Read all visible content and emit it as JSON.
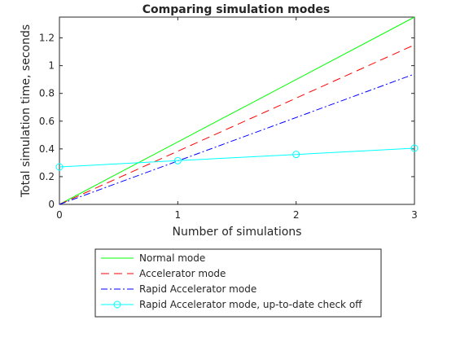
{
  "chart_data": {
    "type": "line",
    "title": "Comparing simulation modes",
    "xlabel": "Number of simulations",
    "ylabel": "Total simulation time, seconds",
    "xlim": [
      0,
      3
    ],
    "ylim": [
      0,
      1.35
    ],
    "xticks": [
      0,
      1,
      2,
      3
    ],
    "xtick_labels": [
      "0",
      "1",
      "2",
      "3"
    ],
    "yticks": [
      0,
      0.2,
      0.4,
      0.6,
      0.8,
      1,
      1.2
    ],
    "ytick_labels": [
      "0",
      "0.2",
      "0.4",
      "0.6",
      "0.8",
      "1",
      "1.2"
    ],
    "grid": false,
    "legend_position": "bottom-center, outside plot",
    "series": [
      {
        "name": "Normal mode",
        "x": [
          0,
          1,
          2,
          3
        ],
        "y": [
          0,
          0.45,
          0.9,
          1.35
        ],
        "color": "#00ff00",
        "line": "solid",
        "marker": "none"
      },
      {
        "name": "Accelerator mode",
        "x": [
          0,
          1,
          2,
          3
        ],
        "y": [
          0,
          0.383,
          0.766,
          1.15
        ],
        "color": "#ff0000",
        "line": "dashed",
        "marker": "none"
      },
      {
        "name": "Rapid Accelerator mode",
        "x": [
          0,
          1,
          2,
          3
        ],
        "y": [
          0,
          0.313,
          0.626,
          0.94
        ],
        "color": "#0000ff",
        "line": "dashdot",
        "marker": "none"
      },
      {
        "name": "Rapid Accelerator mode, up-to-date check off",
        "x": [
          0,
          1,
          2,
          3
        ],
        "y": [
          0.27,
          0.315,
          0.36,
          0.405
        ],
        "color": "#00ffff",
        "line": "solid",
        "marker": "circle"
      }
    ]
  }
}
